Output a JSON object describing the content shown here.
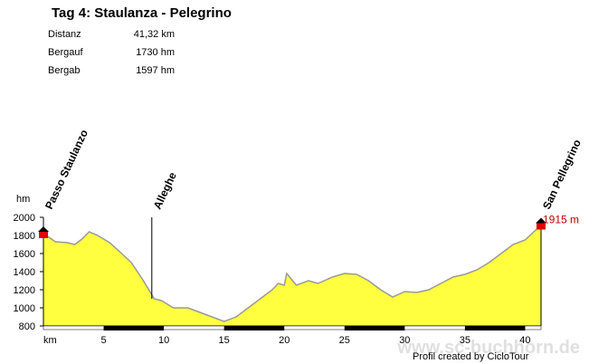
{
  "chart_data": {
    "type": "area",
    "title": "Tag 4: Staulanza - Pelegrino",
    "stats": [
      {
        "label": "Distanz",
        "value": "41,32 km"
      },
      {
        "label": "Bergauf",
        "value": "1730 hm"
      },
      {
        "label": "Bergab",
        "value": "1597 hm"
      }
    ],
    "y_label": "hm",
    "x_label": "km",
    "x": [
      0,
      1,
      2,
      2.6,
      3.2,
      3.8,
      4.5,
      5.5,
      6.5,
      7.3,
      8.3,
      9.2,
      9.8,
      10.8,
      12,
      13,
      14,
      15,
      16,
      17,
      18,
      19,
      19.5,
      20,
      20.2,
      21,
      22,
      22.8,
      24,
      25,
      26,
      27,
      28,
      29,
      30,
      31,
      32,
      33,
      34,
      35,
      36,
      37,
      38,
      39,
      40,
      40.8,
      41.32
    ],
    "values": [
      1820,
      1730,
      1720,
      1700,
      1760,
      1840,
      1800,
      1720,
      1600,
      1500,
      1300,
      1100,
      1080,
      1000,
      1000,
      950,
      900,
      850,
      900,
      1000,
      1100,
      1200,
      1270,
      1250,
      1380,
      1250,
      1300,
      1270,
      1340,
      1380,
      1370,
      1300,
      1200,
      1120,
      1180,
      1170,
      1200,
      1270,
      1340,
      1370,
      1420,
      1500,
      1600,
      1700,
      1750,
      1850,
      1915
    ],
    "color": "#ffff40",
    "line_color": "#999999",
    "xlim": [
      0,
      41.32
    ],
    "xticks": [
      5,
      10,
      15,
      20,
      25,
      30,
      35,
      40
    ],
    "ylim": [
      800,
      2000
    ],
    "yticks": [
      800,
      1000,
      1200,
      1400,
      1600,
      1800,
      2000
    ],
    "annotations": [
      {
        "label": "Passo Staulanzo",
        "x": 0
      },
      {
        "label": "Alleghe",
        "x": 9
      },
      {
        "label": "San Pellegrino",
        "x": 41.32
      }
    ],
    "end_label": {
      "value": 1915,
      "label": "1915 m"
    },
    "credit": "Profil created by CicloTour",
    "watermark": "www.sc-buchhorn.de"
  }
}
